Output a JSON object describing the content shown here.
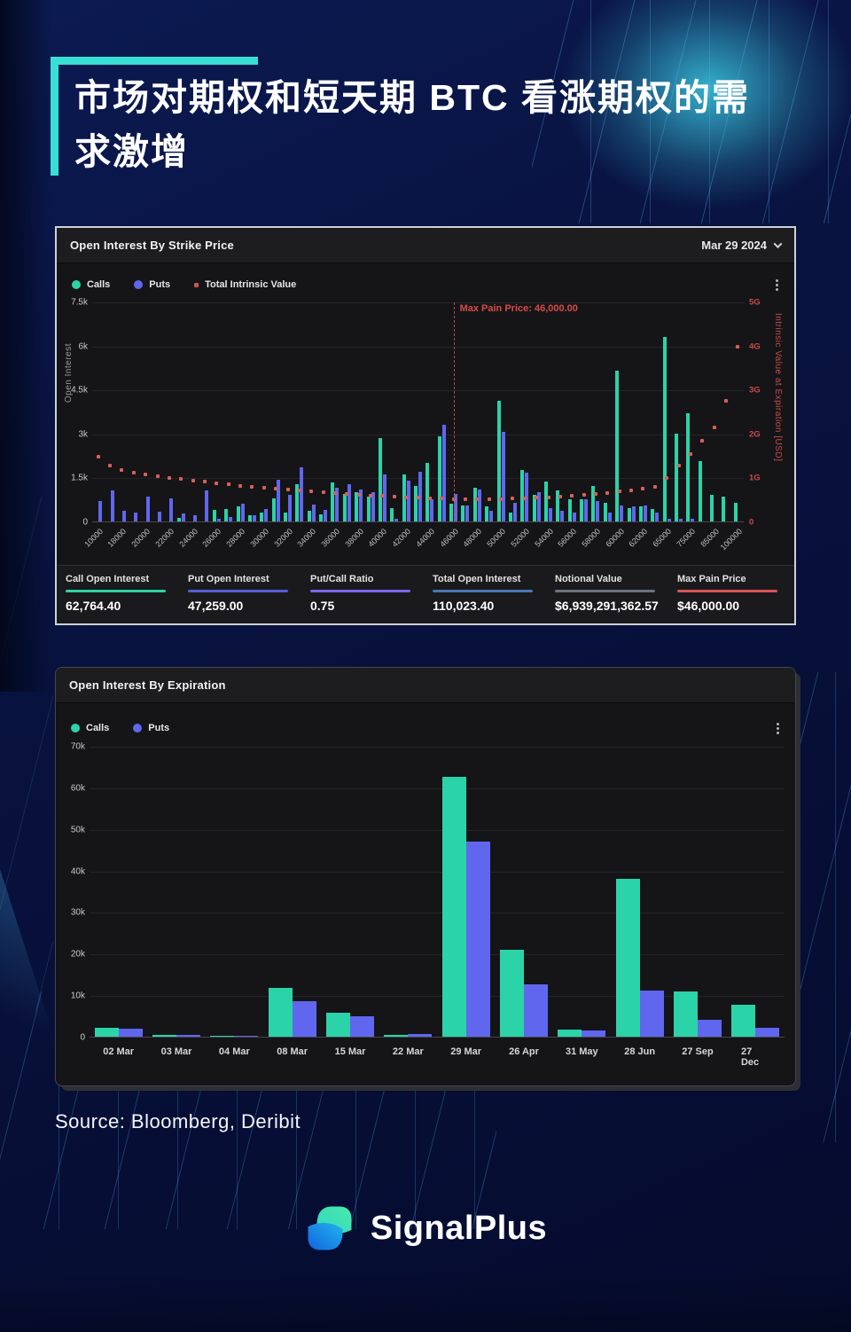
{
  "page": {
    "title_lines": [
      "市场对期权和短天期 BTC 看涨期权的需",
      "求激增"
    ],
    "source": "Source: Bloomberg, Deribit",
    "brand": "SignalPlus"
  },
  "colors": {
    "accent_teal": "#38dfd4",
    "calls": "#2bd3a8",
    "puts": "#6067ee",
    "intrinsic_red": "#d35050",
    "panel_bg": "#151518",
    "page_navy": "#081240"
  },
  "strike_chart": {
    "title": "Open Interest By Strike Price",
    "date_label": "Mar 29 2024",
    "legend": [
      "Calls",
      "Puts",
      "Total Intrinsic Value"
    ],
    "y_left_label": "Open Interest",
    "y_left_ticks": [
      "7.5k",
      "6k",
      "4.5k",
      "3k",
      "1.5k",
      "0"
    ],
    "y_right_label": "Intrinsic Value at Expiration [USD]",
    "y_right_ticks": [
      "5G",
      "4G",
      "3G",
      "2G",
      "1G",
      "0"
    ],
    "max_pain_annotation": "Max Pain Price: 46,000.00",
    "stats": [
      {
        "label": "Call Open Interest",
        "value": "62,764.40",
        "color": "#2bd4a0"
      },
      {
        "label": "Put Open Interest",
        "value": "47,259.00",
        "color": "#555ed8"
      },
      {
        "label": "Put/Call Ratio",
        "value": "0.75",
        "color": "#7b68ee"
      },
      {
        "label": "Total Open Interest",
        "value": "110,023.40",
        "color": "#4a77b5"
      },
      {
        "label": "Notional Value",
        "value": "$6,939,291,362.57",
        "color": "#6b7280"
      },
      {
        "label": "Max Pain Price",
        "value": "$46,000.00",
        "color": "#d85455"
      }
    ]
  },
  "expiry_chart": {
    "title": "Open Interest By Expiration",
    "legend": [
      "Calls",
      "Puts"
    ],
    "y_ticks": [
      "70k",
      "60k",
      "50k",
      "40k",
      "30k",
      "20k",
      "10k",
      "0"
    ]
  },
  "chart_data": [
    {
      "id": "open-interest-by-strike",
      "type": "bar",
      "title": "Open Interest By Strike Price",
      "xlabel": "Strike Price",
      "ylabel_left": "Open Interest",
      "ylabel_right": "Intrinsic Value at Expiration [USD]",
      "ylim_left": [
        0,
        7500
      ],
      "ylim_right_G": [
        0,
        5
      ],
      "grid": true,
      "labels_every": 2,
      "categories": [
        10000,
        15000,
        18000,
        19000,
        20000,
        21000,
        22000,
        23000,
        24000,
        25000,
        26000,
        27000,
        28000,
        29000,
        30000,
        31000,
        32000,
        33000,
        34000,
        35000,
        36000,
        37000,
        38000,
        39000,
        40000,
        41000,
        42000,
        43000,
        44000,
        45000,
        46000,
        47000,
        48000,
        49000,
        50000,
        51000,
        52000,
        53000,
        54000,
        55000,
        56000,
        57000,
        58000,
        59000,
        60000,
        61000,
        62000,
        63000,
        65000,
        70000,
        75000,
        80000,
        85000,
        90000,
        100000
      ],
      "series": [
        {
          "name": "Calls",
          "color": "#2bd3a8",
          "values": [
            0,
            0,
            0,
            0,
            0,
            0,
            0,
            120,
            0,
            0,
            400,
            420,
            500,
            220,
            300,
            800,
            300,
            1280,
            350,
            250,
            1320,
            950,
            1000,
            850,
            2850,
            450,
            1600,
            1200,
            2000,
            2900,
            600,
            550,
            1150,
            500,
            4100,
            300,
            1750,
            900,
            1350,
            1050,
            750,
            750,
            1200,
            650,
            5150,
            450,
            500,
            420,
            6300,
            3000,
            3700,
            2050,
            900,
            850,
            650
          ]
        },
        {
          "name": "Puts",
          "color": "#6067ee",
          "values": [
            700,
            1050,
            350,
            300,
            850,
            330,
            800,
            280,
            220,
            1050,
            100,
            150,
            600,
            200,
            420,
            1420,
            920,
            1850,
            580,
            400,
            1150,
            1280,
            1100,
            1000,
            1600,
            100,
            1400,
            1700,
            750,
            3300,
            950,
            550,
            1100,
            350,
            3050,
            650,
            1650,
            1000,
            450,
            350,
            300,
            750,
            700,
            300,
            550,
            500,
            550,
            300,
            100,
            100,
            100,
            0,
            0,
            0,
            0
          ]
        },
        {
          "name": "Total Intrinsic Value",
          "type": "scatter",
          "axis": "right",
          "color": "#d96057",
          "values_G": [
            1.5,
            1.3,
            1.18,
            1.13,
            1.09,
            1.05,
            1.01,
            0.98,
            0.95,
            0.92,
            0.89,
            0.86,
            0.83,
            0.8,
            0.78,
            0.76,
            0.74,
            0.72,
            0.7,
            0.68,
            0.66,
            0.64,
            0.63,
            0.61,
            0.6,
            0.58,
            0.57,
            0.56,
            0.55,
            0.54,
            0.53,
            0.52,
            0.52,
            0.52,
            0.53,
            0.54,
            0.55,
            0.56,
            0.57,
            0.58,
            0.6,
            0.62,
            0.64,
            0.67,
            0.7,
            0.73,
            0.76,
            0.8,
            1.0,
            1.3,
            1.55,
            1.86,
            2.16,
            2.77,
            4.0
          ]
        }
      ],
      "annotation": {
        "text": "Max Pain Price: 46,000.00",
        "x": 46000
      }
    },
    {
      "id": "open-interest-by-expiration",
      "type": "bar",
      "title": "Open Interest By Expiration",
      "ylim": [
        0,
        70000
      ],
      "grid": true,
      "categories": [
        "02 Mar",
        "03 Mar",
        "04 Mar",
        "08 Mar",
        "15 Mar",
        "22 Mar",
        "29 Mar",
        "26 Apr",
        "31 May",
        "28 Jun",
        "27 Sep",
        "27 Dec"
      ],
      "series": [
        {
          "name": "Calls",
          "color": "#2bd3a8",
          "values": [
            2200,
            500,
            300,
            11800,
            5800,
            350,
            62500,
            21000,
            1800,
            38000,
            10900,
            7600
          ]
        },
        {
          "name": "Puts",
          "color": "#6067ee",
          "values": [
            1900,
            500,
            150,
            8500,
            4900,
            700,
            47000,
            12500,
            1600,
            11000,
            4000,
            2100
          ]
        }
      ]
    }
  ]
}
